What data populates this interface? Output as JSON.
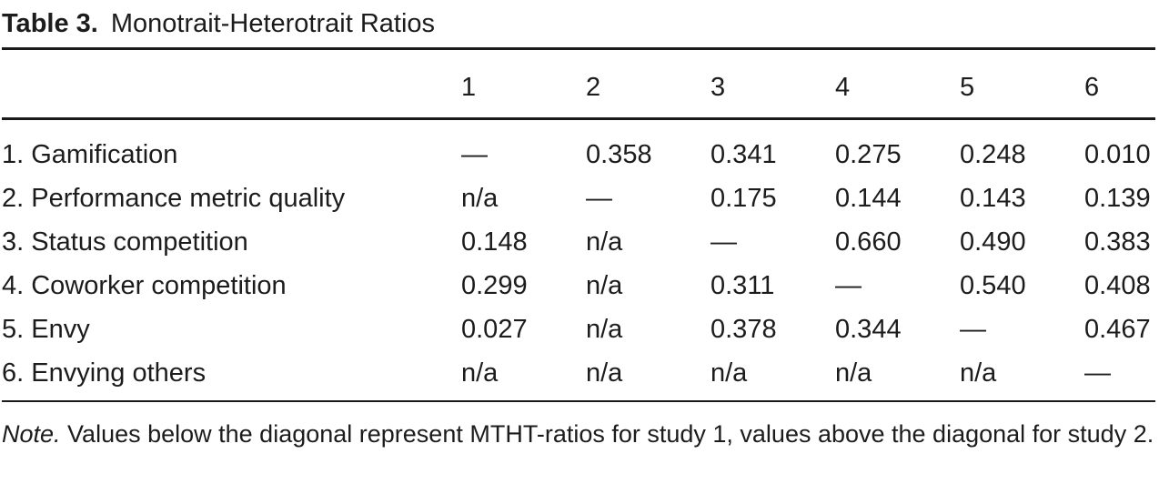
{
  "title": {
    "bold": "Table 3.",
    "rest": "Monotrait-Heterotrait Ratios"
  },
  "matrix": {
    "column_headers": [
      "1",
      "2",
      "3",
      "4",
      "5",
      "6"
    ],
    "rows": [
      {
        "label": "1. Gamification",
        "values": [
          "—",
          "0.358",
          "0.341",
          "0.275",
          "0.248",
          "0.010"
        ]
      },
      {
        "label": "2. Performance metric quality",
        "values": [
          "n/a",
          "—",
          "0.175",
          "0.144",
          "0.143",
          "0.139"
        ]
      },
      {
        "label": "3. Status competition",
        "values": [
          "0.148",
          "n/a",
          "—",
          "0.660",
          "0.490",
          "0.383"
        ]
      },
      {
        "label": "4. Coworker competition",
        "values": [
          "0.299",
          "n/a",
          "0.311",
          "—",
          "0.540",
          "0.408"
        ]
      },
      {
        "label": "5. Envy",
        "values": [
          "0.027",
          "n/a",
          "0.378",
          "0.344",
          "—",
          "0.467"
        ]
      },
      {
        "label": "6. Envying others",
        "values": [
          "n/a",
          "n/a",
          "n/a",
          "n/a",
          "n/a",
          "—"
        ]
      }
    ]
  },
  "note": {
    "label": "Note.",
    "text": " Values below the diagonal represent MTHT-ratios for study 1, values above the diagonal for study 2."
  },
  "colors": {
    "text": "#1c1c1c",
    "rule": "#1a1a1a",
    "background": "#ffffff"
  }
}
